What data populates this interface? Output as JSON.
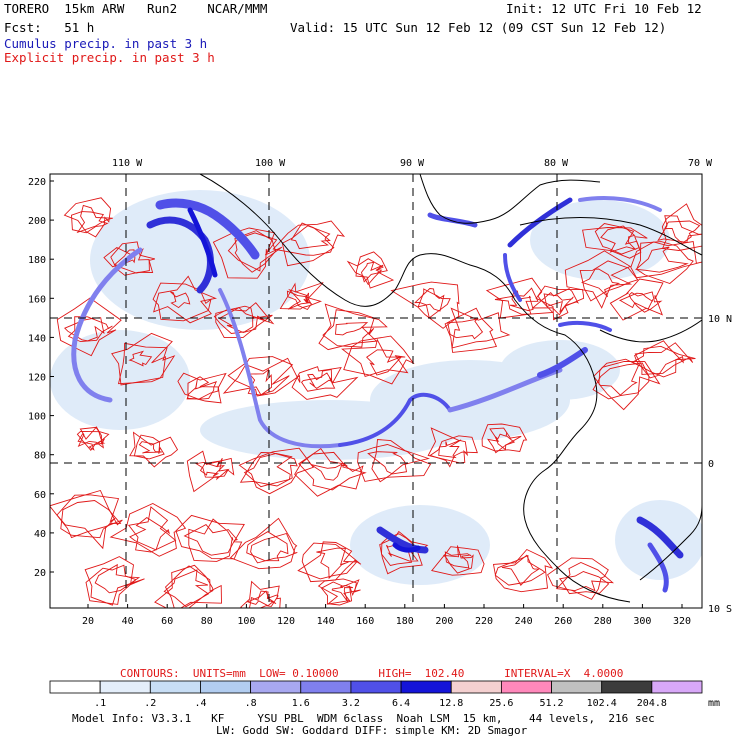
{
  "header": {
    "model": "TORERO  15km ARW   Run2    NCAR/MMM",
    "init": "Init: 12 UTC Fri 10 Feb 12",
    "fcst": "Fcst:   51 h",
    "valid": "Valid: 15 UTC Sun 12 Feb 12 (09 CST Sun 12 Feb 12)",
    "legend_cumulus": "Cumulus precip. in past 3 h",
    "legend_explicit": "Explicit precip. in past 3 h"
  },
  "map": {
    "lon_labels": [
      "110 W",
      "100 W",
      "90 W",
      "80 W",
      "70 W"
    ],
    "lat_labels": [
      "10 N",
      "0",
      "10 S"
    ],
    "y_ticks": [
      "220",
      "200",
      "180",
      "160",
      "140",
      "120",
      "100",
      "80",
      "60",
      "40",
      "20"
    ],
    "x_ticks": [
      "20",
      "40",
      "60",
      "80",
      "100",
      "120",
      "140",
      "160",
      "180",
      "200",
      "220",
      "240",
      "260",
      "280",
      "300",
      "320"
    ]
  },
  "contours_info": {
    "label": "CONTOURS:",
    "units": "UNITS=mm",
    "low": "LOW= 0.10000",
    "high": "HIGH=  102.40",
    "interval": "INTERVAL=X  4.0000"
  },
  "colorbar": {
    "unit": "mm",
    "labels": [
      ".1",
      ".2",
      ".4",
      ".8",
      "1.6",
      "3.2",
      "6.4",
      "12.8",
      "25.6",
      "51.2",
      "102.4",
      "204.8"
    ],
    "colors": [
      "#ffffff",
      "#e4eefa",
      "#c8def5",
      "#b2cdf0",
      "#a8a8f0",
      "#8080ee",
      "#5050e8",
      "#1414d8",
      "#f4d0d0",
      "#ff88bb",
      "#c0c0c0",
      "#3c3c3c",
      "#d8a8f8"
    ]
  },
  "footer": {
    "line1": "Model Info: V3.3.1   KF     YSU PBL  WDM 6class  Noah LSM  15 km,    44 levels,  216 sec",
    "line2": "LW: Godd SW: Goddard DIFF: simple KM: 2D Smagor"
  }
}
